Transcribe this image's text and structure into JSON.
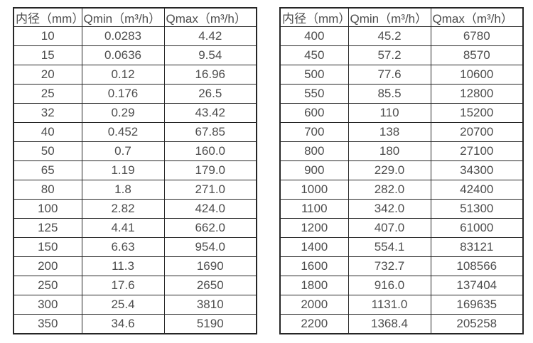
{
  "colors": {
    "border": "#262626",
    "text": "#4d4d4d",
    "background": "#ffffff"
  },
  "table_columns": [
    "内径（mm）",
    "Qmin（m³/h）",
    "Qmax（m³/h）"
  ],
  "left_table": {
    "rows": [
      [
        "10",
        "0.0283",
        "4.42"
      ],
      [
        "15",
        "0.0636",
        "9.54"
      ],
      [
        "20",
        "0.12",
        "16.96"
      ],
      [
        "25",
        "0.176",
        "26.5"
      ],
      [
        "32",
        "0.29",
        "43.42"
      ],
      [
        "40",
        "0.452",
        "67.85"
      ],
      [
        "50",
        "0.7",
        "160.0"
      ],
      [
        "65",
        "1.19",
        "179.0"
      ],
      [
        "80",
        "1.8",
        "271.0"
      ],
      [
        "100",
        "2.82",
        "424.0"
      ],
      [
        "125",
        "4.41",
        "662.0"
      ],
      [
        "150",
        "6.63",
        "954.0"
      ],
      [
        "200",
        "11.3",
        "1690"
      ],
      [
        "250",
        "17.6",
        "2650"
      ],
      [
        "300",
        "25.4",
        "3810"
      ],
      [
        "350",
        "34.6",
        "5190"
      ]
    ]
  },
  "right_table": {
    "rows": [
      [
        "400",
        "45.2",
        "6780"
      ],
      [
        "450",
        "57.2",
        "8570"
      ],
      [
        "500",
        "77.6",
        "10600"
      ],
      [
        "550",
        "85.5",
        "12800"
      ],
      [
        "600",
        "110",
        "15200"
      ],
      [
        "700",
        "138",
        "20700"
      ],
      [
        "800",
        "180",
        "27100"
      ],
      [
        "900",
        "229.0",
        "34300"
      ],
      [
        "1000",
        "282.0",
        "42400"
      ],
      [
        "1100",
        "342.0",
        "51300"
      ],
      [
        "1200",
        "407.0",
        "61000"
      ],
      [
        "1400",
        "554.1",
        "83121"
      ],
      [
        "1600",
        "732.7",
        "108566"
      ],
      [
        "1800",
        "916.0",
        "137404"
      ],
      [
        "2000",
        "1131.0",
        "169635"
      ],
      [
        "2200",
        "1368.4",
        "205258"
      ]
    ]
  }
}
